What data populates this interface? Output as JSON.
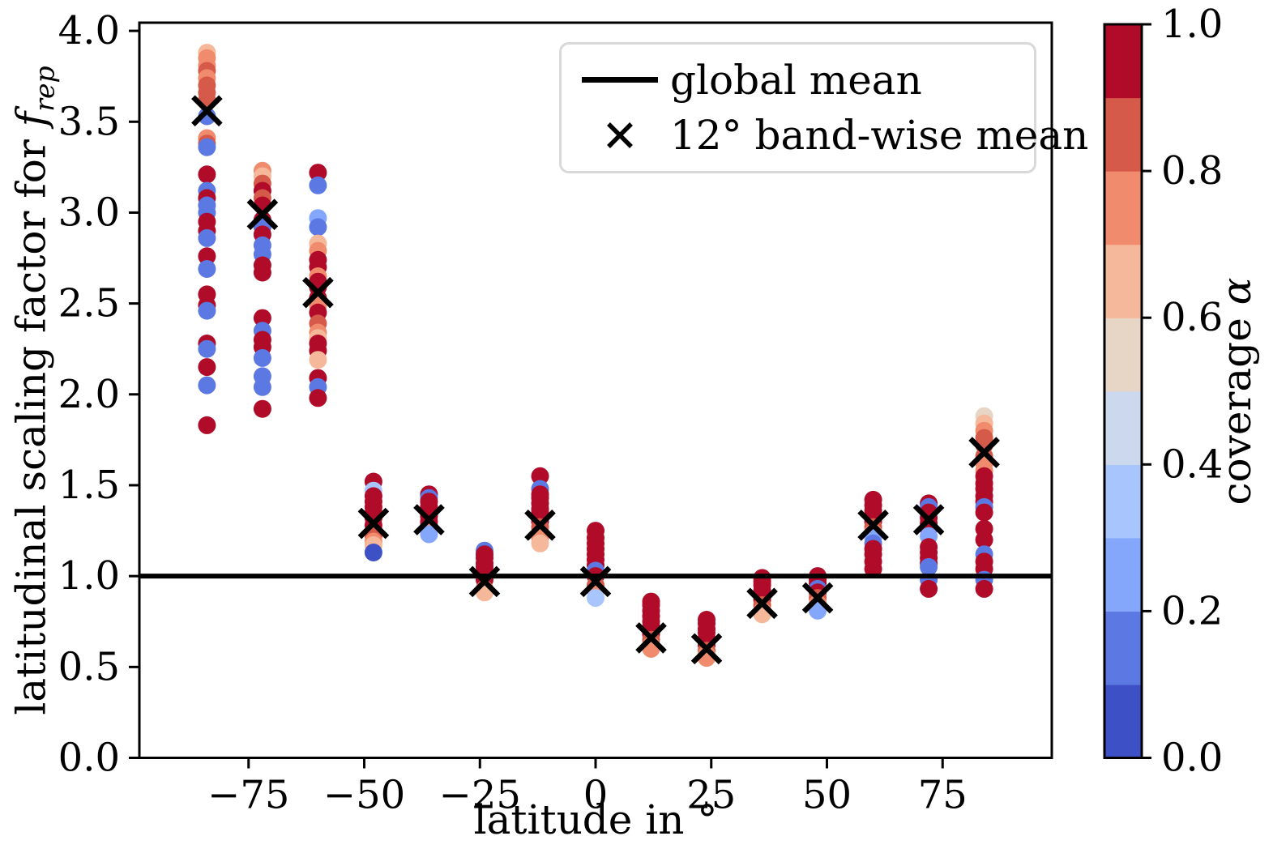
{
  "figure": {
    "background": "#ffffff",
    "xlabel": "latitude in °",
    "ylabel_prefix": "latitudinal scaling factor for ",
    "ylabel_f": "f",
    "ylabel_sub": "rep",
    "colorbar_label_prefix": "coverage ",
    "colorbar_label_alpha": "α",
    "legend": {
      "items": [
        {
          "marker": "line",
          "label": "global mean"
        },
        {
          "marker": "x",
          "label": "12° band-wise mean"
        }
      ]
    }
  },
  "chart_data": {
    "type": "scatter",
    "title": "",
    "xlabel": "latitude in °",
    "ylabel": "latitudinal scaling factor for f_rep",
    "xlim": [
      -98.6,
      98.6
    ],
    "ylim": [
      0,
      4.045
    ],
    "grid": false,
    "legend_position": "upper center",
    "xticks": [
      -75,
      -50,
      -25,
      0,
      25,
      50,
      75
    ],
    "yticks": [
      0.0,
      0.5,
      1.0,
      1.5,
      2.0,
      2.5,
      3.0,
      3.5,
      4.0
    ],
    "global_mean": 1.0,
    "band_width_deg": 12,
    "marker_radius_px": 11,
    "colorbar": {
      "label": "coverage α",
      "ticks": [
        0.0,
        0.2,
        0.4,
        0.6,
        0.8,
        1.0
      ],
      "range": [
        0.0,
        1.0
      ],
      "n_bins": 10,
      "bin_colors": [
        "#3e50c5",
        "#5c78e2",
        "#84a6fb",
        "#a9c5fd",
        "#ccd8ed",
        "#e7d5c5",
        "#f6b89a",
        "#f08b6e",
        "#d65a49",
        "#b00b28"
      ]
    },
    "accent_black": "#000000",
    "bands": [
      {
        "latitude": -84,
        "mean": 3.56,
        "points": [
          [
            3.88,
            0.65
          ],
          [
            3.85,
            0.75
          ],
          [
            3.81,
            0.75
          ],
          [
            3.78,
            0.85
          ],
          [
            3.74,
            0.75
          ],
          [
            3.7,
            0.85
          ],
          [
            3.66,
            0.85
          ],
          [
            3.62,
            0.85
          ],
          [
            3.53,
            0.15
          ],
          [
            3.41,
            0.75
          ],
          [
            3.38,
            0.85
          ],
          [
            3.36,
            0.15
          ],
          [
            3.21,
            0.95
          ],
          [
            3.12,
            0.15
          ],
          [
            3.08,
            0.95
          ],
          [
            3.04,
            0.15
          ],
          [
            3.0,
            0.15
          ],
          [
            2.95,
            0.95
          ],
          [
            2.9,
            0.95
          ],
          [
            2.86,
            0.15
          ],
          [
            2.76,
            0.95
          ],
          [
            2.69,
            0.15
          ],
          [
            2.55,
            0.95
          ],
          [
            2.49,
            0.95
          ],
          [
            2.46,
            0.15
          ],
          [
            2.28,
            0.95
          ],
          [
            2.25,
            0.15
          ],
          [
            2.15,
            0.95
          ],
          [
            2.05,
            0.15
          ],
          [
            1.83,
            0.95
          ]
        ]
      },
      {
        "latitude": -72,
        "mean": 2.99,
        "points": [
          [
            3.23,
            0.75
          ],
          [
            3.2,
            0.65
          ],
          [
            3.16,
            0.85
          ],
          [
            3.12,
            0.95
          ],
          [
            3.08,
            0.85
          ],
          [
            3.04,
            0.95
          ],
          [
            2.96,
            0.95
          ],
          [
            2.92,
            0.15
          ],
          [
            2.88,
            0.95
          ],
          [
            2.82,
            0.15
          ],
          [
            2.77,
            0.15
          ],
          [
            2.71,
            0.95
          ],
          [
            2.67,
            0.95
          ],
          [
            2.42,
            0.95
          ],
          [
            2.35,
            0.15
          ],
          [
            2.3,
            0.95
          ],
          [
            2.26,
            0.95
          ],
          [
            2.2,
            0.15
          ],
          [
            2.1,
            0.15
          ],
          [
            2.04,
            0.15
          ],
          [
            1.92,
            0.95
          ]
        ]
      },
      {
        "latitude": -60,
        "mean": 2.56,
        "points": [
          [
            3.22,
            0.95
          ],
          [
            3.15,
            0.15
          ],
          [
            2.97,
            0.25
          ],
          [
            2.92,
            0.15
          ],
          [
            2.83,
            0.65
          ],
          [
            2.79,
            0.75
          ],
          [
            2.74,
            0.95
          ],
          [
            2.7,
            0.95
          ],
          [
            2.65,
            0.75
          ],
          [
            2.62,
            0.95
          ],
          [
            2.59,
            0.95
          ],
          [
            2.53,
            0.95
          ],
          [
            2.49,
            0.75
          ],
          [
            2.45,
            0.95
          ],
          [
            2.39,
            0.85
          ],
          [
            2.34,
            0.75
          ],
          [
            2.31,
            0.65
          ],
          [
            2.28,
            0.95
          ],
          [
            2.24,
            0.95
          ],
          [
            2.19,
            0.65
          ],
          [
            2.09,
            0.95
          ],
          [
            2.04,
            0.15
          ],
          [
            1.98,
            0.95
          ]
        ]
      },
      {
        "latitude": -48,
        "mean": 1.29,
        "points": [
          [
            1.52,
            0.95
          ],
          [
            1.47,
            0.35
          ],
          [
            1.44,
            0.95
          ],
          [
            1.41,
            0.95
          ],
          [
            1.38,
            0.95
          ],
          [
            1.35,
            0.95
          ],
          [
            1.32,
            0.95
          ],
          [
            1.28,
            0.95
          ],
          [
            1.25,
            0.95
          ],
          [
            1.22,
            0.85
          ],
          [
            1.19,
            0.75
          ],
          [
            1.17,
            0.65
          ],
          [
            1.13,
            0.05
          ]
        ]
      },
      {
        "latitude": -36,
        "mean": 1.31,
        "points": [
          [
            1.45,
            0.95
          ],
          [
            1.43,
            0.15
          ],
          [
            1.41,
            0.95
          ],
          [
            1.38,
            0.95
          ],
          [
            1.35,
            0.95
          ],
          [
            1.33,
            0.95
          ],
          [
            1.3,
            0.95
          ],
          [
            1.28,
            0.95
          ],
          [
            1.26,
            0.85
          ],
          [
            1.24,
            0.75
          ],
          [
            1.23,
            0.25
          ]
        ]
      },
      {
        "latitude": -24,
        "mean": 0.97,
        "points": [
          [
            1.14,
            0.15
          ],
          [
            1.12,
            0.95
          ],
          [
            1.1,
            0.95
          ],
          [
            1.07,
            0.95
          ],
          [
            1.05,
            0.95
          ],
          [
            1.02,
            0.95
          ],
          [
            1.0,
            0.95
          ],
          [
            0.98,
            0.95
          ],
          [
            0.93,
            0.85
          ],
          [
            0.91,
            0.65
          ]
        ]
      },
      {
        "latitude": -12,
        "mean": 1.28,
        "points": [
          [
            1.55,
            0.95
          ],
          [
            1.48,
            0.15
          ],
          [
            1.45,
            0.95
          ],
          [
            1.43,
            0.95
          ],
          [
            1.4,
            0.95
          ],
          [
            1.37,
            0.95
          ],
          [
            1.35,
            0.95
          ],
          [
            1.32,
            0.95
          ],
          [
            1.3,
            0.95
          ],
          [
            1.27,
            0.85
          ],
          [
            1.23,
            0.75
          ],
          [
            1.21,
            0.75
          ],
          [
            1.18,
            0.65
          ]
        ]
      },
      {
        "latitude": 0,
        "mean": 0.97,
        "points": [
          [
            1.25,
            0.95
          ],
          [
            1.21,
            0.95
          ],
          [
            1.18,
            0.95
          ],
          [
            1.15,
            0.95
          ],
          [
            1.12,
            0.95
          ],
          [
            1.09,
            0.95
          ],
          [
            1.06,
            0.95
          ],
          [
            1.03,
            0.15
          ],
          [
            1.0,
            0.95
          ],
          [
            0.95,
            0.85
          ],
          [
            0.92,
            0.75
          ],
          [
            0.88,
            0.35
          ]
        ]
      },
      {
        "latitude": 12,
        "mean": 0.66,
        "points": [
          [
            0.86,
            0.95
          ],
          [
            0.84,
            0.95
          ],
          [
            0.81,
            0.95
          ],
          [
            0.78,
            0.95
          ],
          [
            0.75,
            0.95
          ],
          [
            0.72,
            0.95
          ],
          [
            0.7,
            0.95
          ],
          [
            0.68,
            0.95
          ],
          [
            0.65,
            0.85
          ],
          [
            0.62,
            0.75
          ],
          [
            0.6,
            0.75
          ]
        ]
      },
      {
        "latitude": 24,
        "mean": 0.6,
        "points": [
          [
            0.76,
            0.95
          ],
          [
            0.74,
            0.95
          ],
          [
            0.71,
            0.95
          ],
          [
            0.69,
            0.95
          ],
          [
            0.66,
            0.95
          ],
          [
            0.64,
            0.95
          ],
          [
            0.62,
            0.95
          ],
          [
            0.59,
            0.85
          ],
          [
            0.57,
            0.75
          ],
          [
            0.55,
            0.75
          ]
        ]
      },
      {
        "latitude": 36,
        "mean": 0.85,
        "points": [
          [
            0.99,
            0.95
          ],
          [
            0.97,
            0.95
          ],
          [
            0.95,
            0.95
          ],
          [
            0.92,
            0.95
          ],
          [
            0.9,
            0.95
          ],
          [
            0.87,
            0.95
          ],
          [
            0.84,
            0.85
          ],
          [
            0.81,
            0.75
          ],
          [
            0.79,
            0.65
          ]
        ]
      },
      {
        "latitude": 48,
        "mean": 0.88,
        "points": [
          [
            1.0,
            0.95
          ],
          [
            0.98,
            0.95
          ],
          [
            0.96,
            0.95
          ],
          [
            0.93,
            0.15
          ],
          [
            0.91,
            0.95
          ],
          [
            0.88,
            0.85
          ],
          [
            0.85,
            0.75
          ],
          [
            0.81,
            0.25
          ]
        ]
      },
      {
        "latitude": 60,
        "mean": 1.28,
        "points": [
          [
            1.42,
            0.95
          ],
          [
            1.39,
            0.95
          ],
          [
            1.36,
            0.95
          ],
          [
            1.33,
            0.95
          ],
          [
            1.3,
            0.95
          ],
          [
            1.27,
            0.85
          ],
          [
            1.24,
            0.75
          ],
          [
            1.21,
            0.25
          ],
          [
            1.18,
            0.15
          ],
          [
            1.15,
            0.95
          ],
          [
            1.12,
            0.95
          ],
          [
            1.08,
            0.95
          ],
          [
            1.04,
            0.95
          ]
        ]
      },
      {
        "latitude": 72,
        "mean": 1.31,
        "points": [
          [
            1.4,
            0.95
          ],
          [
            1.38,
            0.15
          ],
          [
            1.35,
            0.95
          ],
          [
            1.32,
            0.95
          ],
          [
            1.29,
            0.95
          ],
          [
            1.26,
            0.95
          ],
          [
            1.22,
            0.25
          ],
          [
            1.16,
            0.95
          ],
          [
            1.13,
            0.95
          ],
          [
            1.1,
            0.95
          ],
          [
            1.07,
            0.95
          ],
          [
            1.05,
            0.15
          ],
          [
            0.98,
            0.15
          ],
          [
            0.93,
            0.95
          ]
        ]
      },
      {
        "latitude": 84,
        "mean": 1.68,
        "points": [
          [
            1.88,
            0.55
          ],
          [
            1.84,
            0.65
          ],
          [
            1.8,
            0.75
          ],
          [
            1.76,
            0.85
          ],
          [
            1.72,
            0.85
          ],
          [
            1.66,
            0.85
          ],
          [
            1.62,
            0.75
          ],
          [
            1.58,
            0.75
          ],
          [
            1.55,
            0.95
          ],
          [
            1.51,
            0.95
          ],
          [
            1.48,
            0.95
          ],
          [
            1.44,
            0.95
          ],
          [
            1.41,
            0.95
          ],
          [
            1.38,
            0.15
          ],
          [
            1.35,
            0.95
          ],
          [
            1.26,
            0.95
          ],
          [
            1.2,
            0.95
          ],
          [
            1.12,
            0.15
          ],
          [
            1.08,
            0.95
          ],
          [
            1.04,
            0.95
          ],
          [
            0.98,
            0.15
          ],
          [
            0.93,
            0.95
          ]
        ]
      }
    ]
  }
}
